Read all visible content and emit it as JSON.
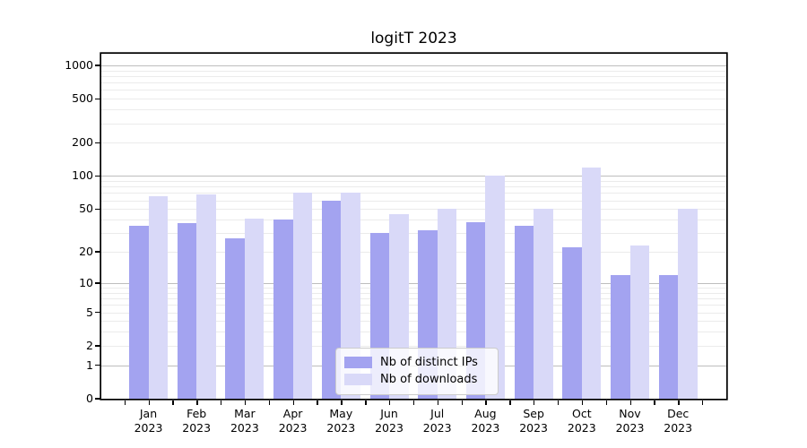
{
  "chart_data": {
    "type": "bar",
    "title": "logitT 2023",
    "categories": [
      "Jan",
      "Feb",
      "Mar",
      "Apr",
      "May",
      "Jun",
      "Jul",
      "Aug",
      "Sep",
      "Oct",
      "Nov",
      "Dec"
    ],
    "year": "2023",
    "series": [
      {
        "name": "Nb of distinct IPs",
        "color": "#a3a3f0",
        "values": [
          35,
          37,
          27,
          40,
          60,
          30,
          32,
          38,
          35,
          22,
          12,
          12
        ]
      },
      {
        "name": "Nb of downloads",
        "color": "#d9d9f8",
        "values": [
          65,
          68,
          41,
          70,
          70,
          45,
          50,
          100,
          50,
          120,
          23,
          50
        ]
      }
    ],
    "y_axis": {
      "scale": "log1p",
      "tick_values": [
        1000,
        500,
        200,
        100,
        50,
        20,
        10,
        5,
        2,
        1,
        0
      ],
      "tick_labels": [
        "1000",
        "500",
        "200",
        "100",
        "50",
        "20",
        "10",
        "5",
        "2",
        "1",
        "0"
      ],
      "major_grid_values": [
        1,
        10,
        100,
        1000
      ],
      "minor_grid_values": [
        2,
        3,
        4,
        5,
        6,
        7,
        8,
        9,
        20,
        30,
        40,
        50,
        60,
        70,
        80,
        90,
        200,
        300,
        400,
        500,
        600,
        700,
        800,
        900
      ],
      "range_top_value": 1270
    },
    "grid": "on",
    "legend_position": "bottom-center"
  },
  "legend": {
    "items": [
      {
        "label": "Nb of distinct IPs",
        "series_index": 0
      },
      {
        "label": "Nb of downloads",
        "series_index": 1
      }
    ]
  },
  "colors": {
    "ips_bar": "#a3a3f0",
    "downloads_bar": "#d9d9f8",
    "grid_major": "#bdbdbd",
    "grid_minor": "#ebebeb",
    "axis": "#000000",
    "legend_border": "#cccccc",
    "background": "#ffffff"
  }
}
